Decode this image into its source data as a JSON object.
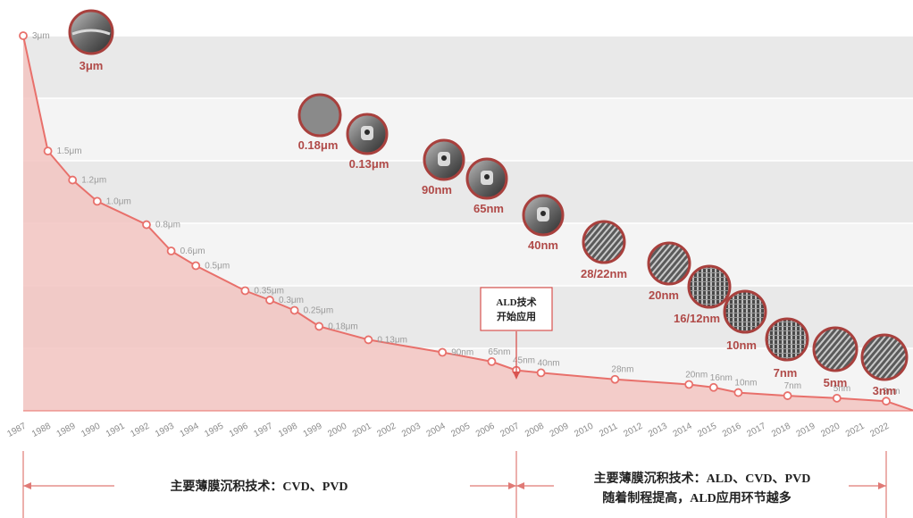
{
  "chart_data": {
    "type": "area",
    "x": [
      1987,
      1988,
      1989,
      1990,
      1992,
      1993,
      1994,
      1996,
      1997,
      1998,
      1999,
      2001,
      2004,
      2006,
      2007,
      2008,
      2011,
      2014,
      2015,
      2016,
      2018,
      2020,
      2022
    ],
    "y_labels": [
      "3μm",
      "1.5μm",
      "1.2μm",
      "1.0μm",
      "0.8μm",
      "0.6μm",
      "0.5μm",
      "0.35μm",
      "0.3μm",
      "0.25μm",
      "0.18μm",
      "0.13μm",
      "90nm",
      "65nm",
      "45nm",
      "40nm",
      "28nm",
      "20nm",
      "16nm",
      "10nm",
      "7nm",
      "5nm",
      "3nm"
    ],
    "values_nm": [
      3000,
      1500,
      1200,
      1000,
      800,
      600,
      500,
      350,
      300,
      250,
      180,
      130,
      90,
      65,
      45,
      40,
      28,
      20,
      16,
      10,
      7,
      5,
      3
    ],
    "years": [
      "1987",
      "1988",
      "1989",
      "1990",
      "1991",
      "1992",
      "1993",
      "1994",
      "1995",
      "1996",
      "1997",
      "1998",
      "1999",
      "2000",
      "2001",
      "2002",
      "2003",
      "2004",
      "2005",
      "2006",
      "2007",
      "2008",
      "2009",
      "2010",
      "2011",
      "2012",
      "2013",
      "2014",
      "2015",
      "2016",
      "2017",
      "2018",
      "2019",
      "2020",
      "2021",
      "2022"
    ],
    "node_images": [
      "3μm",
      "0.18μm",
      "0.13μm",
      "90nm",
      "65nm",
      "40nm",
      "28/22nm",
      "20nm",
      "16/12nm",
      "10nm",
      "7nm",
      "5nm",
      "3nm"
    ],
    "callout": {
      "line1": "ALD技术",
      "line2": "开始应用",
      "year": 2007
    },
    "eras": [
      {
        "text": "主要薄膜沉积技术：CVD、PVD",
        "from": 1987,
        "to": 2007
      },
      {
        "text": "主要薄膜沉积技术：ALD、CVD、PVD",
        "text2": "随着制程提高，ALD应用环节越多",
        "from": 2007,
        "to": 2022
      }
    ],
    "colors": {
      "line": "#e8706b",
      "fill": "#f2c4c1",
      "band_dark": "#e9e9e9",
      "band_light": "#f4f4f4",
      "label": "#b04a48"
    }
  }
}
